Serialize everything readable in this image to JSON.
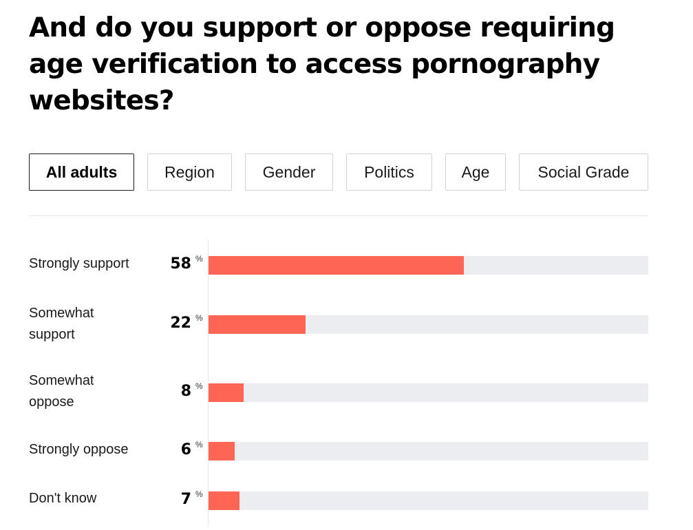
{
  "question": "And do you support or oppose requiring age verification to access pornography websites?",
  "tabs": [
    {
      "label": "All adults",
      "active": true
    },
    {
      "label": "Region",
      "active": false
    },
    {
      "label": "Gender",
      "active": false
    },
    {
      "label": "Politics",
      "active": false
    },
    {
      "label": "Age",
      "active": false
    },
    {
      "label": "Social Grade",
      "active": false
    }
  ],
  "colors": {
    "bar": "#ff6554",
    "track": "#ecedf1"
  },
  "chart_data": {
    "type": "bar",
    "orientation": "horizontal",
    "categories": [
      "Strongly support",
      "Somewhat support",
      "Somewhat oppose",
      "Strongly oppose",
      "Don't know"
    ],
    "values": [
      58,
      22,
      8,
      6,
      7
    ],
    "unit": "%",
    "xlim": [
      0,
      100
    ],
    "title": "",
    "xlabel": "",
    "ylabel": ""
  }
}
